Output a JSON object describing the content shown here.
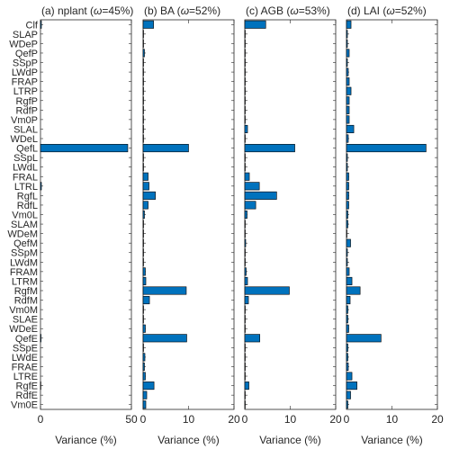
{
  "chart_data": {
    "type": "bar",
    "orientation": "horizontal",
    "categories": [
      "Clf",
      "SLAP",
      "WDeP",
      "QefP",
      "SSpP",
      "LWdP",
      "FRAP",
      "LTRP",
      "RgfP",
      "RdfP",
      "Vm0P",
      "SLAL",
      "WDeL",
      "QefL",
      "SSpL",
      "LWdL",
      "FRAL",
      "LTRL",
      "RgfL",
      "RdfL",
      "Vm0L",
      "SLAM",
      "WDeM",
      "QefM",
      "SSpM",
      "LWdM",
      "FRAM",
      "LTRM",
      "RgfM",
      "RdfM",
      "Vm0M",
      "SLAE",
      "WDeE",
      "QefE",
      "SSpE",
      "LWdE",
      "FRAE",
      "LTRE",
      "RgfE",
      "RdfE",
      "Vm0E"
    ],
    "bar_color": "#0072BD",
    "grid": false,
    "panels": [
      {
        "title": "(a) nplant (ω=45%)",
        "title_parts": [
          "(a) nplant (",
          "ω",
          "=45%)"
        ],
        "xlabel": "Variance (%)",
        "xlim": [
          0,
          50
        ],
        "xticks": [
          0,
          50
        ],
        "values": [
          0.5,
          0,
          0,
          0,
          0,
          0,
          0,
          0,
          0,
          0,
          0,
          0,
          0,
          48,
          0,
          0,
          0,
          0.5,
          0,
          0,
          0,
          0,
          0,
          0,
          0,
          0,
          0,
          0,
          0,
          0,
          0,
          0,
          0,
          0.3,
          0,
          0,
          0,
          0,
          0.2,
          0,
          0
        ]
      },
      {
        "title": "(b) BA (ω=52%)",
        "title_parts": [
          "(b) BA (",
          "ω",
          "=52%)"
        ],
        "xlabel": "Variance (%)",
        "xlim": [
          0,
          20
        ],
        "xticks": [
          0,
          10,
          20
        ],
        "values": [
          2.3,
          0.1,
          0.1,
          0.3,
          0.1,
          0.1,
          0.1,
          0.1,
          0.1,
          0.1,
          0.1,
          0.1,
          0.1,
          10.0,
          0.1,
          0.1,
          1.1,
          1.3,
          2.7,
          1.1,
          0.3,
          0.1,
          0.1,
          0.1,
          0.1,
          0.1,
          0.5,
          0.6,
          9.5,
          1.4,
          0.1,
          0.1,
          0.5,
          9.6,
          0.1,
          0.4,
          0.3,
          0.5,
          2.4,
          0.8,
          0.6
        ]
      },
      {
        "title": "(c) AGB (ω=53%)",
        "title_parts": [
          "(c) AGB (",
          "ω",
          "=53%)"
        ],
        "xlabel": "Variance (%)",
        "xlim": [
          0,
          20
        ],
        "xticks": [
          0,
          10,
          20
        ],
        "values": [
          4.6,
          0.1,
          0.1,
          0.1,
          0.1,
          0.1,
          0.1,
          0.1,
          0.1,
          0.1,
          0.1,
          0.6,
          0.1,
          11.0,
          0.1,
          0.1,
          1.0,
          3.2,
          7.0,
          2.4,
          0.5,
          0.1,
          0.1,
          0.2,
          0.1,
          0.1,
          0.3,
          0.6,
          9.8,
          0.8,
          0.1,
          0.1,
          0.1,
          3.3,
          0.1,
          0.1,
          0.1,
          0.1,
          0.9,
          0.1,
          0.1
        ]
      },
      {
        "title": "(d) LAI (ω=52%)",
        "title_parts": [
          "(d) LAI (",
          "ω",
          "=52%)"
        ],
        "xlabel": "Variance (%)",
        "xlim": [
          0,
          20
        ],
        "xticks": [
          0,
          10,
          20
        ],
        "values": [
          1.0,
          0.2,
          0.2,
          0.6,
          0.2,
          0.4,
          0.6,
          1.0,
          0.6,
          0.6,
          0.6,
          1.6,
          0.4,
          17.5,
          0.2,
          0.2,
          0.5,
          0.5,
          0.5,
          0.5,
          0.3,
          0.3,
          0.1,
          0.9,
          0.2,
          0.2,
          0.6,
          1.2,
          3.0,
          0.8,
          0.3,
          0.3,
          0.5,
          7.6,
          0.3,
          0.3,
          0.4,
          1.2,
          2.3,
          0.9,
          0.3
        ]
      }
    ]
  }
}
